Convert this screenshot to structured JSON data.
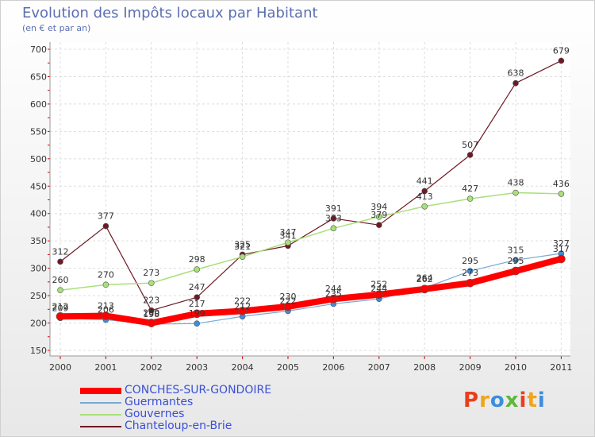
{
  "title": "Evolution des Impôts locaux par Habitant",
  "subtitle": "(en € et par an)",
  "logo": {
    "text": "Proxiti",
    "colors": [
      "#e8401a",
      "#f2a51a",
      "#3b8ede",
      "#5fb83a",
      "#e8401a",
      "#f2a51a",
      "#3b8ede"
    ]
  },
  "chart_data": {
    "type": "line",
    "title": "Evolution des Impôts locaux par Habitant",
    "subtitle": "(en € et par an)",
    "xlabel": "",
    "ylabel": "",
    "ylim": [
      150,
      700
    ],
    "yticks": [
      150,
      200,
      250,
      300,
      350,
      400,
      450,
      500,
      550,
      600,
      650,
      700
    ],
    "grid": true,
    "legend_position": "bottom-left",
    "x": [
      "2000",
      "2001",
      "2002",
      "2003",
      "2004",
      "2005",
      "2006",
      "2007",
      "2008",
      "2009",
      "2010",
      "2011"
    ],
    "series": [
      {
        "name": "Chanteloup-en-Brie",
        "color": "#6e1a24",
        "width": 1.2,
        "marker": 3.5,
        "values": [
          312,
          377,
          223,
          247,
          325,
          341,
          391,
          379,
          441,
          507,
          638,
          679
        ]
      },
      {
        "name": "Gouvernes",
        "color": "#a8e07a",
        "width": 1.5,
        "marker": 3.5,
        "values": [
          260,
          270,
          273,
          298,
          321,
          347,
          373,
          394,
          413,
          427,
          438,
          436
        ]
      },
      {
        "name": "Guermantes",
        "color": "#79a9d6",
        "width": 1.2,
        "marker": 3.5,
        "values": [
          209,
          206,
          198,
          199,
          212,
          222,
          235,
          244,
          264,
          295,
          315,
          327
        ]
      },
      {
        "name": "CONCHES-SUR-GONDOIRE",
        "color": "#ff0000",
        "width": 8,
        "marker": 5,
        "values": [
          212,
          213,
          200,
          217,
          222,
          230,
          244,
          252,
          262,
          273,
          295,
          317
        ]
      }
    ]
  },
  "legend": [
    {
      "name": "CONCHES-SUR-GONDOIRE",
      "color": "#ff0000",
      "thickness": 8
    },
    {
      "name": "Guermantes",
      "color": "#79a9d6",
      "thickness": 2
    },
    {
      "name": "Gouvernes",
      "color": "#a8e07a",
      "thickness": 2
    },
    {
      "name": "Chanteloup-en-Brie",
      "color": "#6e1a24",
      "thickness": 2
    }
  ]
}
